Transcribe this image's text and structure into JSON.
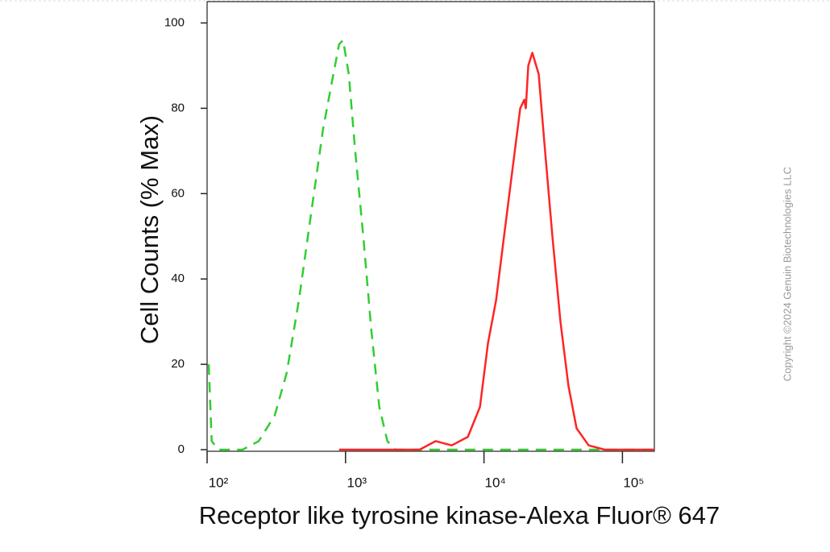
{
  "chart_data": {
    "type": "line",
    "x_label": "Receptor like tyrosine kinase-Alexa Fluor® 647",
    "y_label": "Cell Counts (% Max)",
    "copyright": "Copyright ©2024 Genuin Biotechnologies LLC",
    "xscale": "log",
    "xlim": [
      100,
      170000
    ],
    "xticks": [
      {
        "value": 100,
        "label": "10²"
      },
      {
        "value": 1000,
        "label": "10³"
      },
      {
        "value": 10000,
        "label": "10⁴"
      },
      {
        "value": 100000,
        "label": "10⁵"
      }
    ],
    "ylim": [
      0,
      105
    ],
    "yticks": [
      0,
      20,
      40,
      60,
      80,
      100
    ],
    "series": [
      {
        "color": "#33cc33",
        "dashed": true,
        "x": [
          102.7,
          108,
          121,
          180,
          236,
          308,
          376,
          460,
          562,
          687,
          785,
          898,
          961,
          1055,
          1175,
          1343,
          1535,
          1754,
          2005,
          2291,
          170000
        ],
        "values": [
          20,
          2,
          0,
          0,
          2,
          8,
          18,
          35,
          55,
          75,
          85,
          95,
          96,
          88,
          70,
          50,
          28,
          10,
          2,
          0,
          0
        ]
      },
      {
        "color": "#ff2424",
        "dashed": false,
        "x": [
          898,
          3428,
          4479,
          5851,
          7653,
          9355,
          10690,
          12220,
          13960,
          15960,
          18280,
          19540,
          20050,
          20890,
          22340,
          24850,
          27290,
          31190,
          35650,
          40740,
          46670,
          57020,
          74470,
          170000
        ],
        "values": [
          0,
          0,
          2,
          1,
          3,
          10,
          25,
          35,
          50,
          65,
          80,
          82,
          80,
          90,
          93,
          88,
          72,
          50,
          30,
          15,
          5,
          1,
          0,
          0
        ]
      }
    ]
  }
}
